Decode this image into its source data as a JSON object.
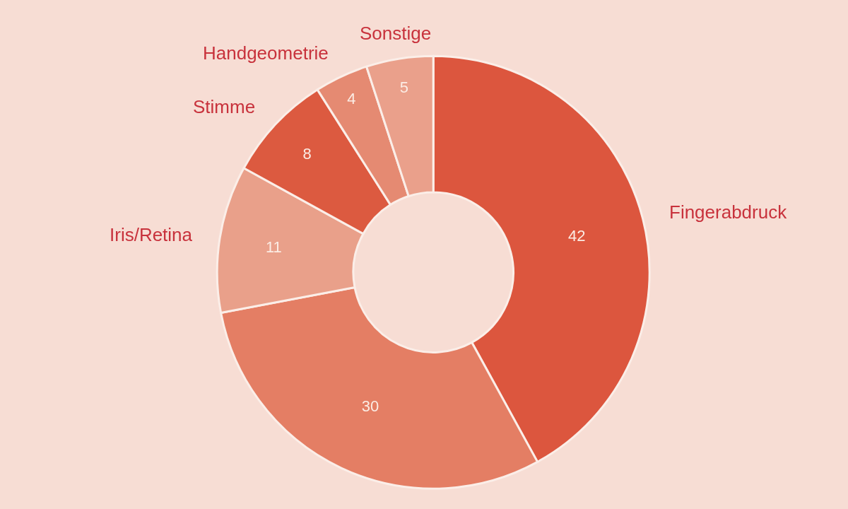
{
  "chart_data": {
    "type": "donut",
    "categories": [
      "Fingerabdruck",
      null,
      "Iris/Retina",
      "Stimme",
      "Handgeometrie",
      "Sonstige"
    ],
    "values": [
      42,
      30,
      11,
      8,
      4,
      5
    ],
    "colors": [
      "#dc563e",
      "#e47e64",
      "#e9a08a",
      "#dc5a40",
      "#e58a72",
      "#eaa08b"
    ],
    "data_labels": true
  }
}
